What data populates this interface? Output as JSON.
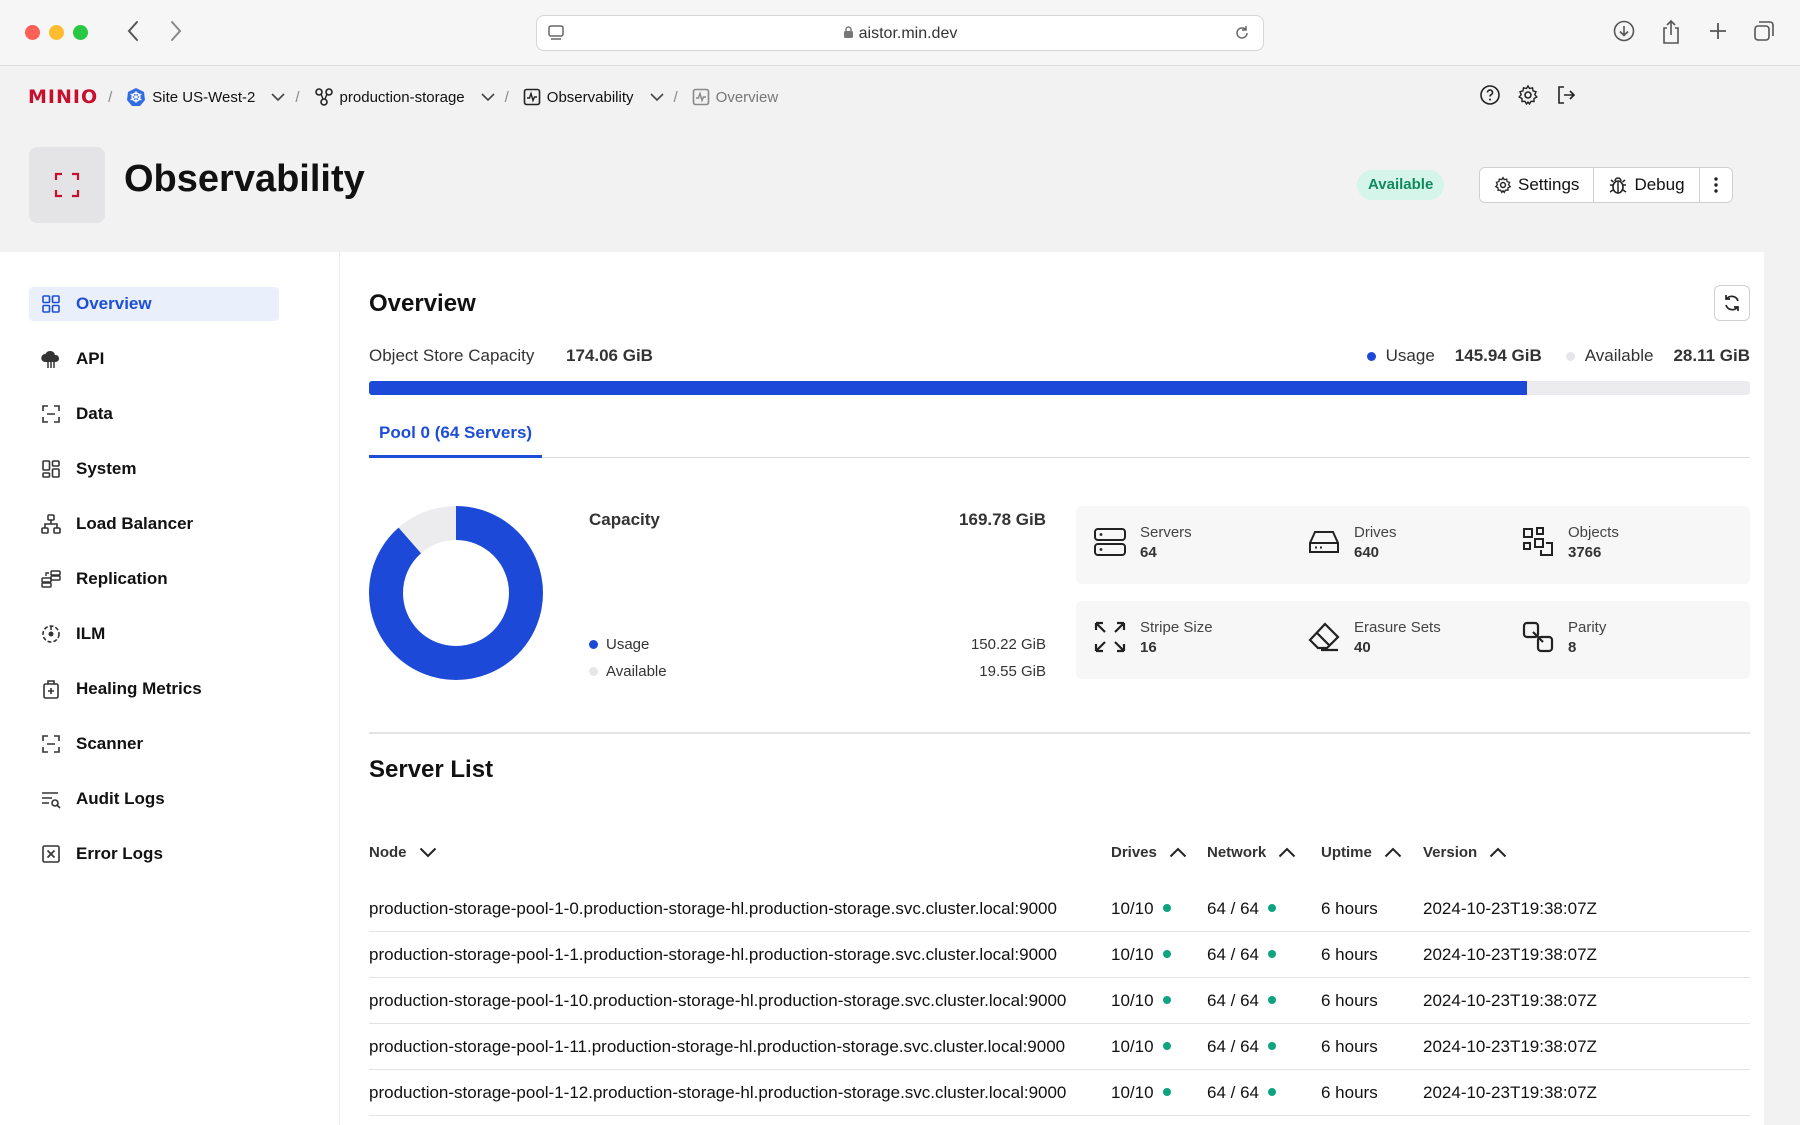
{
  "browser": {
    "url": "aistor.min.dev"
  },
  "breadcrumb": {
    "logo": "MINIO",
    "site": "Site US-West-2",
    "cluster": "production-storage",
    "section": "Observability",
    "page": "Overview"
  },
  "header": {
    "title": "Observability",
    "status": "Available",
    "settings_label": "Settings",
    "debug_label": "Debug"
  },
  "sidebar": {
    "items": [
      {
        "label": "Overview",
        "icon": "grid-icon"
      },
      {
        "label": "API",
        "icon": "cloud-icon"
      },
      {
        "label": "Data",
        "icon": "scan-icon"
      },
      {
        "label": "System",
        "icon": "dashboard-icon"
      },
      {
        "label": "Load Balancer",
        "icon": "network-icon"
      },
      {
        "label": "Replication",
        "icon": "replication-icon"
      },
      {
        "label": "ILM",
        "icon": "lifecycle-icon"
      },
      {
        "label": "Healing Metrics",
        "icon": "healing-icon"
      },
      {
        "label": "Scanner",
        "icon": "scan-icon"
      },
      {
        "label": "Audit Logs",
        "icon": "audit-icon"
      },
      {
        "label": "Error Logs",
        "icon": "error-log-icon"
      }
    ]
  },
  "overview": {
    "title": "Overview",
    "capacity_label": "Object Store Capacity",
    "capacity_value": "174.06 GiB",
    "usage_label": "Usage",
    "usage_value": "145.94 GiB",
    "available_label": "Available",
    "available_value": "28.11 GiB",
    "usage_fraction": 0.8385,
    "colors": {
      "usage": "#1d49d8",
      "available": "#ececee"
    }
  },
  "pool": {
    "tab_label": "Pool 0 (64 Servers)",
    "capacity_label": "Capacity",
    "capacity_value": "169.78 GiB",
    "usage_label": "Usage",
    "usage_value": "150.22 GiB",
    "available_label": "Available",
    "available_value": "19.55 GiB",
    "usage_fraction": 0.8848,
    "stats": [
      {
        "label": "Servers",
        "value": "64",
        "icon": "server-icon"
      },
      {
        "label": "Drives",
        "value": "640",
        "icon": "drive-icon"
      },
      {
        "label": "Objects",
        "value": "3766",
        "icon": "objects-icon"
      },
      {
        "label": "Stripe Size",
        "value": "16",
        "icon": "expand-icon"
      },
      {
        "label": "Erasure Sets",
        "value": "40",
        "icon": "eraser-icon"
      },
      {
        "label": "Parity",
        "value": "8",
        "icon": "parity-icon"
      }
    ]
  },
  "server_list": {
    "title": "Server List",
    "columns": {
      "node": "Node",
      "drives": "Drives",
      "network": "Network",
      "uptime": "Uptime",
      "version": "Version"
    },
    "rows": [
      {
        "node": "production-storage-pool-1-0.production-storage-hl.production-storage.svc.cluster.local:9000",
        "drives": "10/10",
        "network": "64 / 64",
        "uptime": "6 hours",
        "version": "2024-10-23T19:38:07Z"
      },
      {
        "node": "production-storage-pool-1-1.production-storage-hl.production-storage.svc.cluster.local:9000",
        "drives": "10/10",
        "network": "64 / 64",
        "uptime": "6 hours",
        "version": "2024-10-23T19:38:07Z"
      },
      {
        "node": "production-storage-pool-1-10.production-storage-hl.production-storage.svc.cluster.local:9000",
        "drives": "10/10",
        "network": "64 / 64",
        "uptime": "6 hours",
        "version": "2024-10-23T19:38:07Z"
      },
      {
        "node": "production-storage-pool-1-11.production-storage-hl.production-storage.svc.cluster.local:9000",
        "drives": "10/10",
        "network": "64 / 64",
        "uptime": "6 hours",
        "version": "2024-10-23T19:38:07Z"
      },
      {
        "node": "production-storage-pool-1-12.production-storage-hl.production-storage.svc.cluster.local:9000",
        "drives": "10/10",
        "network": "64 / 64",
        "uptime": "6 hours",
        "version": "2024-10-23T19:38:07Z"
      }
    ]
  }
}
